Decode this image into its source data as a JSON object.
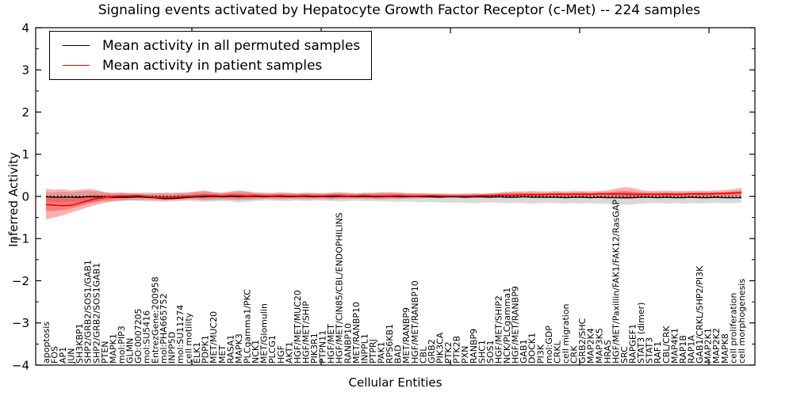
{
  "chart_data": {
    "type": "line",
    "title": "Signaling events activated by Hepatocyte Growth Factor Receptor (c-Met) -- 224 samples",
    "xlabel": "Cellular Entities",
    "ylabel": "Inferred Activity",
    "ylim": [
      -4,
      4
    ],
    "ytick_values": [
      4,
      3,
      2,
      1,
      0,
      -1,
      -2,
      -3,
      -4
    ],
    "grid": false,
    "legend_position": "upper left",
    "zero_line_style": "dashed",
    "categories": [
      "apoptosis",
      "FOS",
      "AP1",
      "JUN",
      "SH3KBP1",
      "SHP2/GRB2/SOS1/GAB1",
      "SHP2/GRB2/SOS1GAB1",
      "PTEN",
      "MAPK1",
      "mol:PIP3",
      "GLMN",
      "GO:0007205",
      "mol:SU5416",
      "EntrezGene:200958",
      "mol:PHA665752",
      "INPP5D",
      "mol:SU11274",
      "cell motility",
      "ELK1",
      "PDPK1",
      "MET/MUC20",
      "MET",
      "RASA1",
      "MAPK3",
      "PLCgamma1/PKC",
      "NCK1",
      "MET/Glomulin",
      "PLCG1",
      "HGF",
      "AKT1",
      "HGF/MET/MUC20",
      "HGF/MET/SHIP",
      "PIK3R1",
      "PTPN11",
      "HGF/MET",
      "HGF/MET/CIN85/CBL/ENDOPHILINS",
      "RANBP10",
      "MET/RANBP10",
      "INPPL1",
      "PTPRJ",
      "PAK1",
      "RPS6KB1",
      "BAD",
      "MET/RANBP9",
      "HGF/MET/RANBP10",
      "CBL",
      "GRB2",
      "PIK3CA",
      "PTK2",
      "PTK2B",
      "PXN",
      "RANBP9",
      "SHC1",
      "SOS1",
      "HGF/MET/SHIP2",
      "NCK/PLCgamma1",
      "HGF/MET/RANBP9",
      "GAB1",
      "DOCK1",
      "PI3K",
      "mol:GDP",
      "CRKL",
      "cell migration",
      "CRK",
      "GRB2/SHC",
      "MAP2K4",
      "MAP3K5",
      "HRAS",
      "HGF/MET/Paxillin/FAK1/FAK12/RasGAP",
      "SRC",
      "RAPGEF1",
      "STAT3 (dimer)",
      "STAT3",
      "RAF1",
      "CBL/CRK",
      "MAP4K1",
      "RAP1B",
      "RAP1A",
      "GAB1/CRKL/SHP2/PI3K",
      "MAP2K1",
      "MAP2K2",
      "MAPK8",
      "cell proliferation",
      "cell morphogenesis"
    ],
    "series": [
      {
        "name": "Mean activity in all permuted samples",
        "color": "#000000",
        "band_color": "#aaaaaa",
        "band_opacity": 0.45,
        "values": [
          -0.01,
          -0.02,
          -0.02,
          -0.02,
          -0.02,
          -0.01,
          -0.01,
          -0.01,
          -0.02,
          -0.02,
          -0.02,
          -0.01,
          -0.02,
          -0.03,
          -0.05,
          -0.05,
          -0.04,
          -0.02,
          -0.01,
          -0.01,
          0.0,
          -0.01,
          0.0,
          -0.01,
          0.0,
          0.0,
          -0.01,
          0.0,
          0.0,
          -0.01,
          0.0,
          0.0,
          -0.01,
          0.0,
          -0.01,
          0.0,
          0.0,
          -0.01,
          0.0,
          -0.01,
          -0.01,
          0.0,
          -0.01,
          -0.01,
          0.0,
          -0.01,
          -0.01,
          -0.02,
          -0.01,
          -0.01,
          -0.02,
          -0.01,
          -0.01,
          -0.02,
          -0.01,
          -0.02,
          -0.02,
          -0.01,
          -0.02,
          -0.02,
          -0.02,
          -0.02,
          -0.03,
          -0.02,
          -0.02,
          -0.03,
          -0.02,
          -0.03,
          -0.03,
          -0.03,
          -0.03,
          -0.02,
          -0.02,
          -0.03,
          -0.02,
          -0.03,
          -0.03,
          -0.02,
          -0.03,
          -0.03,
          -0.02,
          -0.03,
          -0.03,
          -0.03
        ],
        "band_upper": [
          0.1,
          0.1,
          0.11,
          0.1,
          0.12,
          0.13,
          0.12,
          0.1,
          0.09,
          0.09,
          0.08,
          0.09,
          0.1,
          0.09,
          0.09,
          0.1,
          0.09,
          0.1,
          0.11,
          0.12,
          0.1,
          0.09,
          0.1,
          0.12,
          0.11,
          0.09,
          0.09,
          0.08,
          0.09,
          0.09,
          0.08,
          0.09,
          0.08,
          0.08,
          0.09,
          0.1,
          0.09,
          0.08,
          0.09,
          0.09,
          0.1,
          0.09,
          0.09,
          0.08,
          0.08,
          0.08,
          0.07,
          0.08,
          0.07,
          0.07,
          0.08,
          0.08,
          0.07,
          0.08,
          0.08,
          0.09,
          0.09,
          0.08,
          0.09,
          0.08,
          0.08,
          0.09,
          0.08,
          0.09,
          0.09,
          0.08,
          0.09,
          0.09,
          0.1,
          0.1,
          0.09,
          0.08,
          0.08,
          0.08,
          0.09,
          0.08,
          0.08,
          0.08,
          0.09,
          0.08,
          0.08,
          0.09,
          0.09,
          0.09
        ],
        "band_lower": [
          -0.13,
          -0.14,
          -0.14,
          -0.13,
          -0.14,
          -0.15,
          -0.14,
          -0.12,
          -0.11,
          -0.11,
          -0.1,
          -0.11,
          -0.12,
          -0.12,
          -0.13,
          -0.12,
          -0.11,
          -0.11,
          -0.12,
          -0.13,
          -0.12,
          -0.11,
          -0.12,
          -0.14,
          -0.13,
          -0.11,
          -0.1,
          -0.1,
          -0.11,
          -0.11,
          -0.1,
          -0.11,
          -0.1,
          -0.1,
          -0.11,
          -0.12,
          -0.11,
          -0.1,
          -0.11,
          -0.11,
          -0.12,
          -0.12,
          -0.13,
          -0.12,
          -0.13,
          -0.14,
          -0.13,
          -0.14,
          -0.15,
          -0.14,
          -0.15,
          -0.16,
          -0.15,
          -0.14,
          -0.15,
          -0.16,
          -0.15,
          -0.16,
          -0.17,
          -0.16,
          -0.15,
          -0.16,
          -0.17,
          -0.16,
          -0.17,
          -0.16,
          -0.17,
          -0.18,
          -0.19,
          -0.2,
          -0.19,
          -0.17,
          -0.16,
          -0.16,
          -0.17,
          -0.16,
          -0.17,
          -0.16,
          -0.17,
          -0.16,
          -0.15,
          -0.16,
          -0.16,
          -0.15
        ]
      },
      {
        "name": "Mean activity in patient samples",
        "color": "#ff0000",
        "band_color": "#ff0000",
        "band_opacity": 0.3,
        "has_inner_band": true,
        "values": [
          -0.19,
          -0.21,
          -0.22,
          -0.21,
          -0.16,
          -0.1,
          -0.05,
          -0.02,
          0.0,
          0.01,
          0.01,
          0.02,
          0.0,
          -0.02,
          -0.03,
          -0.03,
          -0.01,
          0.0,
          0.01,
          0.02,
          0.02,
          0.01,
          0.02,
          0.02,
          0.01,
          0.02,
          0.01,
          0.01,
          0.02,
          0.01,
          0.01,
          0.02,
          0.01,
          0.01,
          0.02,
          0.02,
          0.01,
          0.01,
          0.02,
          0.01,
          0.01,
          0.01,
          0.02,
          0.01,
          0.01,
          0.01,
          0.02,
          0.01,
          0.01,
          0.01,
          0.01,
          0.01,
          0.02,
          0.02,
          0.03,
          0.03,
          0.03,
          0.04,
          0.04,
          0.04,
          0.05,
          0.05,
          0.05,
          0.05,
          0.05,
          0.05,
          0.06,
          0.06,
          0.06,
          0.06,
          0.05,
          0.05,
          0.05,
          0.05,
          0.05,
          0.05,
          0.05,
          0.06,
          0.06,
          0.06,
          0.07,
          0.07,
          0.08,
          0.09
        ],
        "band_upper": [
          0.18,
          0.16,
          0.17,
          0.14,
          0.16,
          0.18,
          0.15,
          0.1,
          0.08,
          0.09,
          0.08,
          0.07,
          0.06,
          0.07,
          0.08,
          0.07,
          0.08,
          0.09,
          0.12,
          0.14,
          0.1,
          0.08,
          0.12,
          0.14,
          0.12,
          0.09,
          0.08,
          0.08,
          0.09,
          0.08,
          0.07,
          0.08,
          0.08,
          0.07,
          0.08,
          0.09,
          0.08,
          0.07,
          0.08,
          0.08,
          0.09,
          0.1,
          0.09,
          0.08,
          0.07,
          0.07,
          0.06,
          0.06,
          0.05,
          0.05,
          0.05,
          0.06,
          0.06,
          0.07,
          0.09,
          0.11,
          0.12,
          0.12,
          0.13,
          0.12,
          0.12,
          0.13,
          0.12,
          0.13,
          0.13,
          0.12,
          0.13,
          0.14,
          0.18,
          0.22,
          0.2,
          0.15,
          0.13,
          0.13,
          0.14,
          0.13,
          0.13,
          0.13,
          0.14,
          0.13,
          0.14,
          0.15,
          0.17,
          0.2
        ],
        "band_lower": [
          -0.55,
          -0.5,
          -0.45,
          -0.38,
          -0.32,
          -0.26,
          -0.2,
          -0.15,
          -0.12,
          -0.1,
          -0.09,
          -0.08,
          -0.08,
          -0.09,
          -0.1,
          -0.09,
          -0.08,
          -0.07,
          -0.08,
          -0.09,
          -0.08,
          -0.07,
          -0.08,
          -0.09,
          -0.08,
          -0.07,
          -0.06,
          -0.06,
          -0.07,
          -0.06,
          -0.06,
          -0.07,
          -0.06,
          -0.06,
          -0.07,
          -0.06,
          -0.06,
          -0.05,
          -0.06,
          -0.06,
          -0.07,
          -0.06,
          -0.06,
          -0.05,
          -0.05,
          -0.04,
          -0.04,
          -0.03,
          -0.03,
          -0.03,
          -0.03,
          -0.04,
          -0.03,
          -0.03,
          -0.02,
          -0.02,
          -0.02,
          -0.01,
          -0.02,
          -0.02,
          -0.01,
          -0.02,
          -0.02,
          -0.01,
          -0.02,
          -0.02,
          -0.01,
          -0.02,
          -0.04,
          -0.06,
          -0.05,
          -0.03,
          -0.02,
          -0.02,
          -0.02,
          -0.02,
          -0.02,
          -0.01,
          -0.02,
          -0.02,
          -0.01,
          -0.01,
          -0.01,
          0.0
        ]
      }
    ]
  }
}
